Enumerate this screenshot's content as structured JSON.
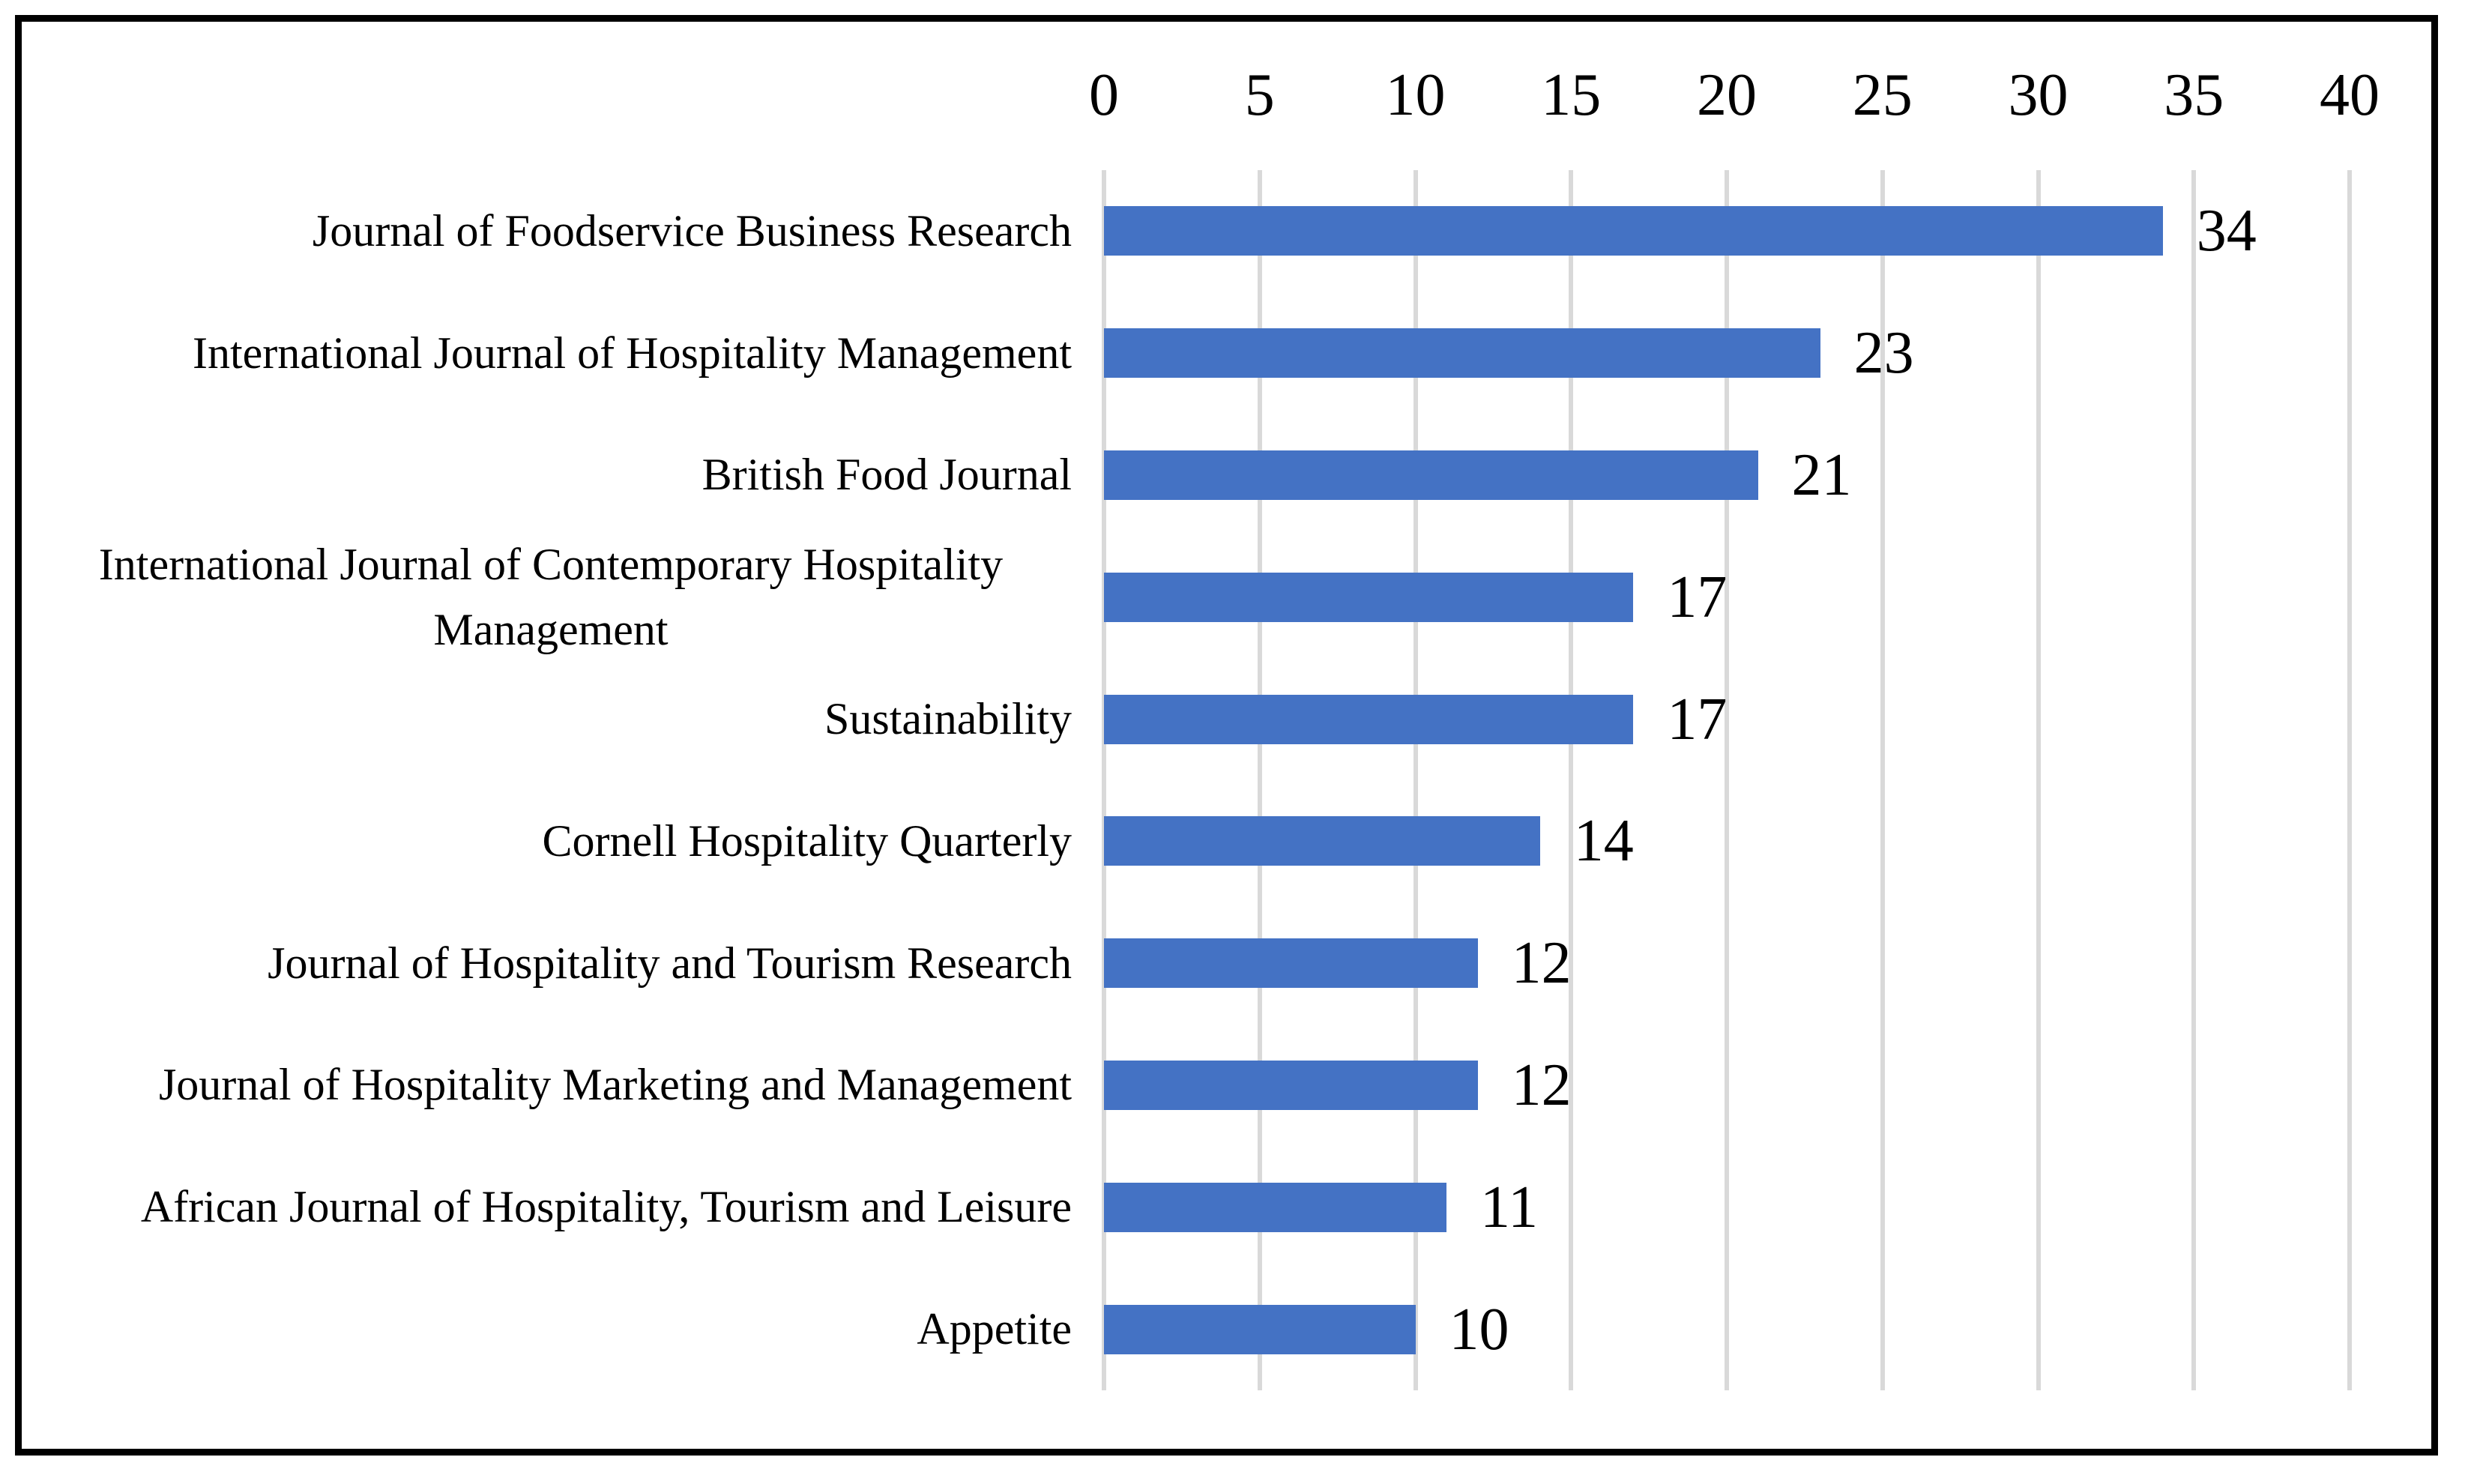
{
  "figure": {
    "background_color": "#ffffff",
    "border_color": "#000000",
    "text_color": "#000000"
  },
  "chart_data": {
    "type": "bar",
    "orientation": "horizontal",
    "title": "",
    "xlabel": "",
    "ylabel": "",
    "categories": [
      "Journal of Foodservice Business Research",
      "International Journal of Hospitality Management",
      "British Food Journal",
      "International Journal of Contemporary Hospitality Management",
      "Sustainability",
      "Cornell Hospitality Quarterly",
      "Journal of Hospitality and Tourism Research",
      "Journal of Hospitality Marketing and Management",
      "African Journal of Hospitality, Tourism and Leisure",
      "Appetite"
    ],
    "values": [
      34,
      23,
      21,
      17,
      17,
      14,
      12,
      12,
      11,
      10
    ],
    "data_labels": [
      "34",
      "23",
      "21",
      "17",
      "17",
      "14",
      "12",
      "12",
      "11",
      "10"
    ],
    "xlim": [
      0,
      40
    ],
    "xticks": [
      "0",
      "5",
      "10",
      "15",
      "20",
      "25",
      "30",
      "35",
      "40"
    ],
    "xtick_values": [
      0,
      5,
      10,
      15,
      20,
      25,
      30,
      35,
      40
    ],
    "axis_position": "top",
    "grid": "vertical-major",
    "legend": "none",
    "bar_color": "#4472C4",
    "gridline_color": "#D9D9D9"
  }
}
